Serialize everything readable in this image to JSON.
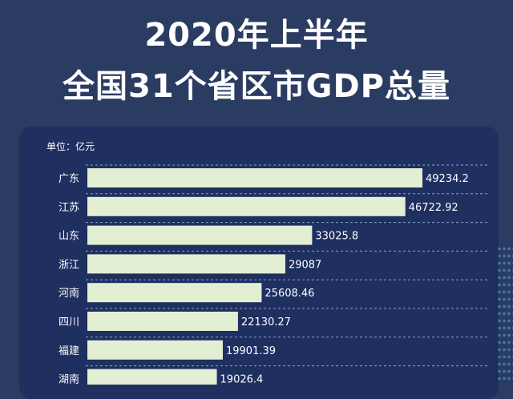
{
  "header": {
    "title_line1": "2020年上半年",
    "title_line2": "全国31个省区市GDP总量"
  },
  "chart_data": {
    "type": "bar",
    "orientation": "horizontal",
    "unit_label": "单位：亿元",
    "categories": [
      "广东",
      "江苏",
      "山东",
      "浙江",
      "河南",
      "四川",
      "福建",
      "湖南"
    ],
    "values": [
      49234.2,
      46722.92,
      33025.8,
      29087,
      25608.46,
      22130.27,
      19901.39,
      19026.4
    ],
    "value_labels": [
      "49234.2",
      "46722.92",
      "33025.8",
      "29087",
      "25608.46",
      "22130.27",
      "19901.39",
      "19026.4"
    ],
    "xlim": [
      0,
      50000
    ],
    "bar_color": "#e2efd3",
    "label_color": "#ffffff",
    "grid": "dashed separators between rows"
  }
}
